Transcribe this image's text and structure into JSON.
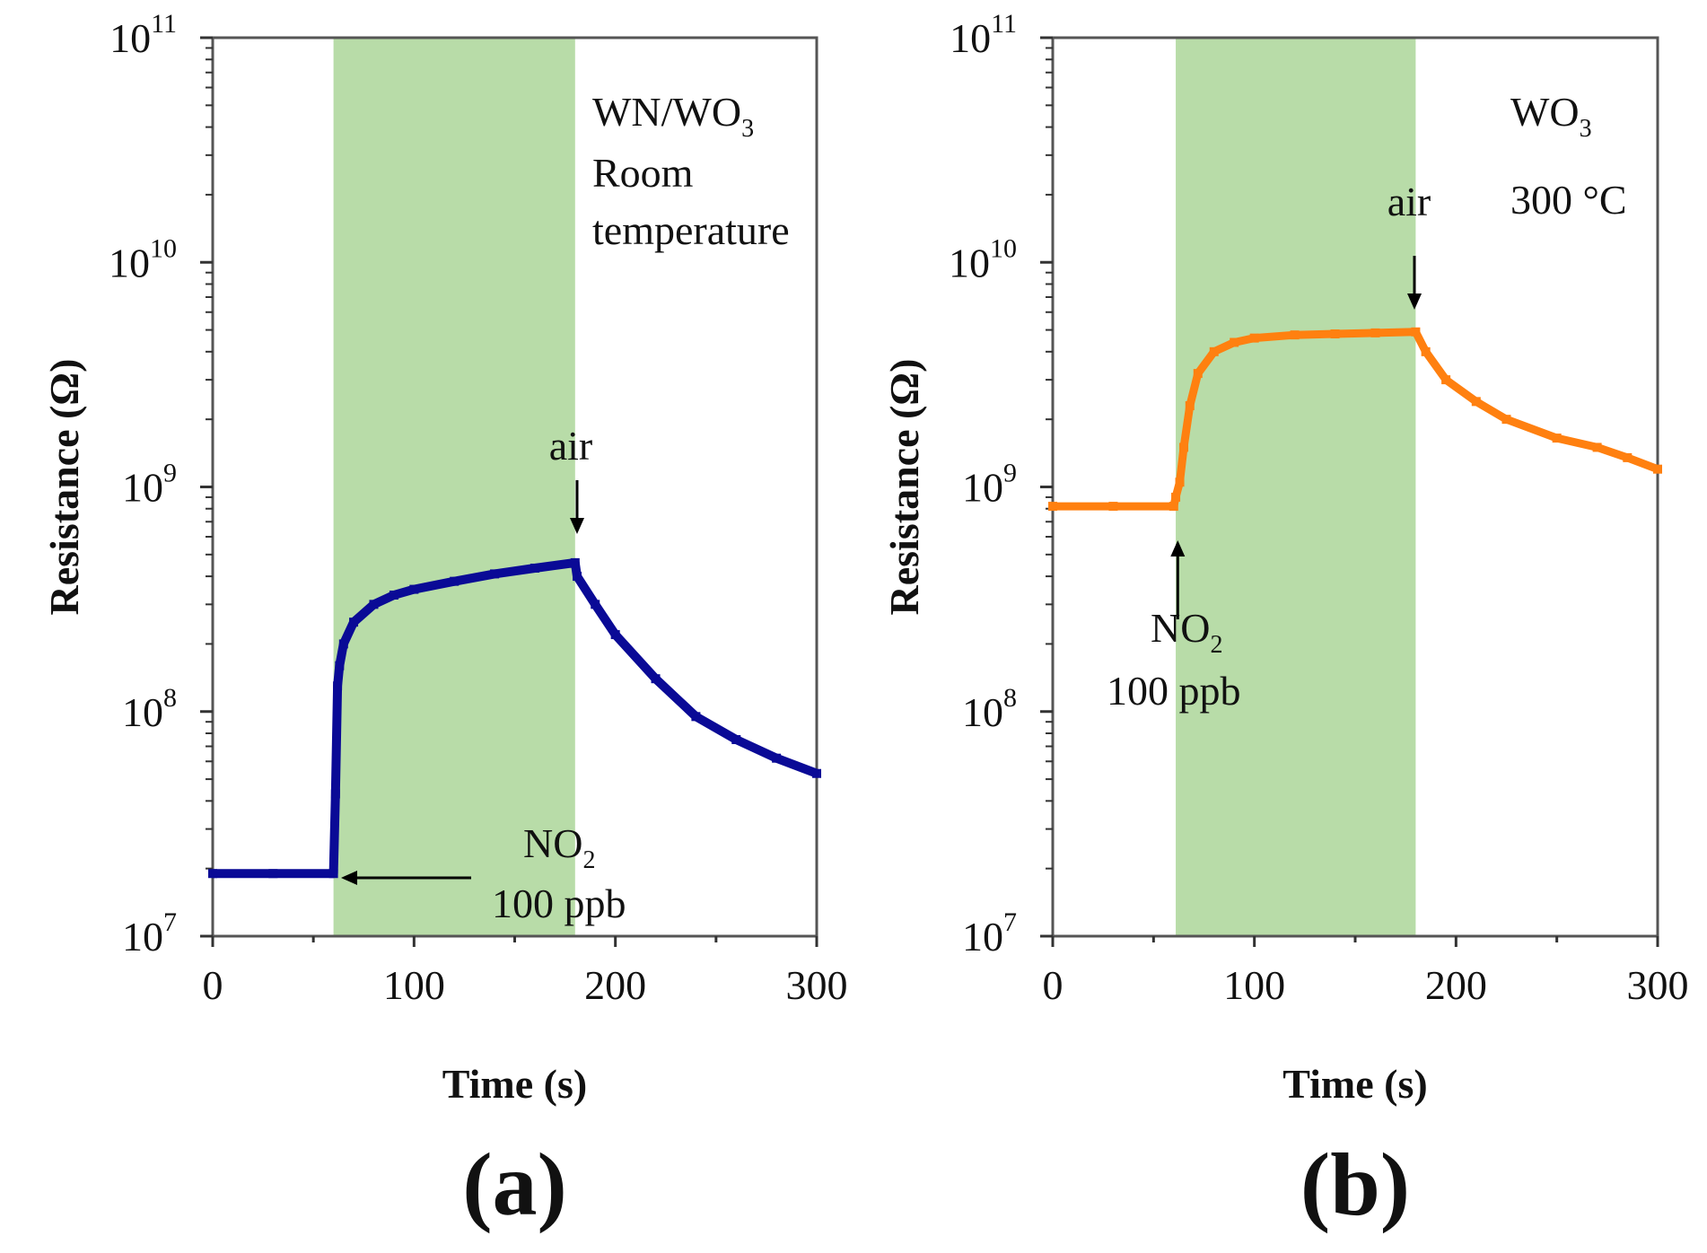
{
  "chart_data": [
    {
      "panel_label": "(a)",
      "type": "line",
      "xlabel": "Time (s)",
      "ylabel": "Resistance (Ω)",
      "xlim": [
        0,
        300
      ],
      "ylim": [
        10000000.0,
        100000000000.0
      ],
      "yscale": "log",
      "xticks": [
        "0",
        "100",
        "200",
        "300"
      ],
      "yticks": [
        {
          "base": "10",
          "exp": "7"
        },
        {
          "base": "10",
          "exp": "8"
        },
        {
          "base": "10",
          "exp": "9"
        },
        {
          "base": "10",
          "exp": "10"
        },
        {
          "base": "10",
          "exp": "11"
        }
      ],
      "shaded_region": [
        60,
        180
      ],
      "shade_color": "#b8dca8",
      "series_color": "#0a0a96",
      "annotations": {
        "material": "WN/WO",
        "material_sub": "3",
        "cond1": "Room",
        "cond2": "temperature",
        "air": "air",
        "gas": "NO",
        "gas_sub": "2",
        "conc": "100 ppb"
      },
      "series": [
        {
          "name": "WN/WO3",
          "x": [
            0,
            30,
            60,
            61,
            62,
            63,
            65,
            70,
            80,
            90,
            100,
            120,
            140,
            160,
            180,
            181,
            190,
            200,
            220,
            240,
            260,
            280,
            300
          ],
          "y": [
            19000000.0,
            19000000.0,
            19000000.0,
            43000000.0,
            130000000.0,
            160000000.0,
            200000000.0,
            250000000.0,
            300000000.0,
            330000000.0,
            350000000.0,
            380000000.0,
            410000000.0,
            435000000.0,
            460000000.0,
            400000000.0,
            300000000.0,
            220000000.0,
            140000000.0,
            95000000.0,
            75000000.0,
            62000000.0,
            53000000.0
          ]
        }
      ]
    },
    {
      "panel_label": "(b)",
      "type": "line",
      "xlabel": "Time (s)",
      "ylabel": "Resistance (Ω)",
      "xlim": [
        0,
        300
      ],
      "ylim": [
        10000000.0,
        100000000000.0
      ],
      "yscale": "log",
      "xticks": [
        "0",
        "100",
        "200",
        "300"
      ],
      "yticks": [
        {
          "base": "10",
          "exp": "7"
        },
        {
          "base": "10",
          "exp": "8"
        },
        {
          "base": "10",
          "exp": "9"
        },
        {
          "base": "10",
          "exp": "10"
        },
        {
          "base": "10",
          "exp": "11"
        }
      ],
      "shaded_region": [
        61,
        180
      ],
      "shade_color": "#b8dca8",
      "series_color": "#ff8010",
      "annotations": {
        "material": "WO",
        "material_sub": "3",
        "cond1": "300 °C",
        "air": "air",
        "gas": "NO",
        "gas_sub": "2",
        "conc": "100 ppb"
      },
      "series": [
        {
          "name": "WO3",
          "x": [
            0,
            30,
            60,
            61,
            63,
            65,
            68,
            72,
            80,
            90,
            100,
            120,
            140,
            160,
            180,
            185,
            195,
            210,
            225,
            250,
            270,
            285,
            300
          ],
          "y": [
            820000000.0,
            820000000.0,
            820000000.0,
            900000000.0,
            1050000000.0,
            1500000000.0,
            2300000000.0,
            3200000000.0,
            4000000000.0,
            4400000000.0,
            4600000000.0,
            4750000000.0,
            4800000000.0,
            4850000000.0,
            4900000000.0,
            4000000000.0,
            3000000000.0,
            2400000000.0,
            2000000000.0,
            1650000000.0,
            1500000000.0,
            1350000000.0,
            1200000000.0
          ]
        }
      ]
    }
  ]
}
